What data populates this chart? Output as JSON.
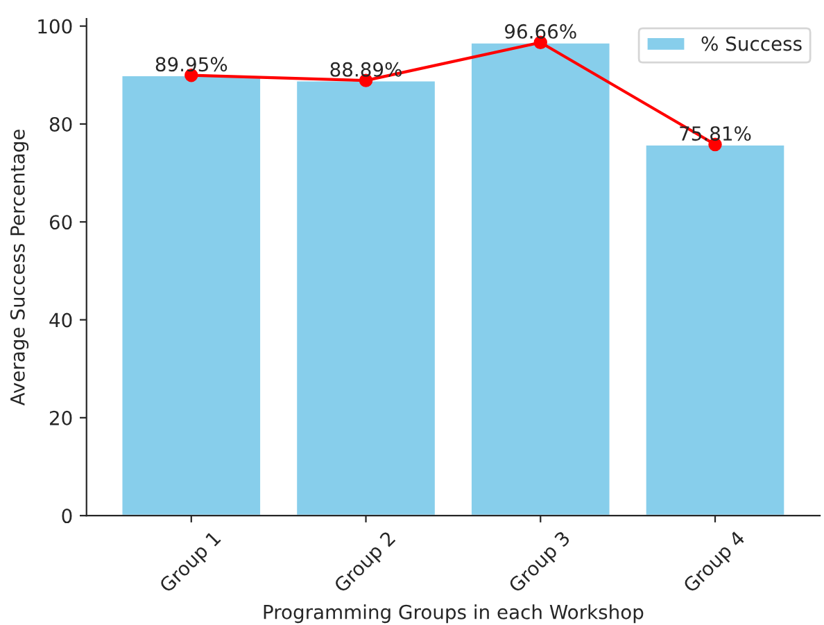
{
  "chart_data": {
    "type": "bar",
    "xlabel": "Programming Groups in each Workshop",
    "ylabel": "Average Success Percentage",
    "categories": [
      "Group 1",
      "Group 2",
      "Group 3",
      "Group 4"
    ],
    "series": [
      {
        "name": "% Success",
        "color": "#87ceeb",
        "values": [
          89.95,
          88.89,
          96.66,
          75.81
        ]
      },
      {
        "type": "line",
        "color": "#ff0000",
        "marker": "circle",
        "values": [
          89.95,
          88.89,
          96.66,
          75.81
        ],
        "value_labels": [
          "89.95%",
          "88.89%",
          "96.66%",
          "75.81%"
        ]
      }
    ],
    "ylim": [
      0,
      101.5
    ],
    "yticks": [
      0,
      20,
      40,
      60,
      80,
      100
    ],
    "grid": false,
    "legend": "top right"
  }
}
